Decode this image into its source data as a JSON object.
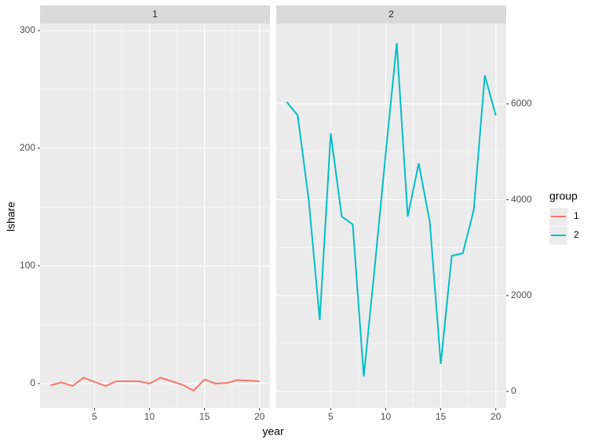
{
  "chart_data": {
    "type": "line",
    "x_label": "year",
    "y_label": "lshare",
    "legend_title": "group",
    "legend_position": "right",
    "grid": true,
    "xlim": [
      0.05,
      20.95
    ],
    "xticks": [
      5,
      10,
      15,
      20
    ],
    "panels": [
      {
        "strip": "1",
        "axis_side": "left",
        "ylim": [
          -20.7,
          306
        ],
        "yticks": [
          0,
          100,
          200,
          300
        ],
        "series": [
          {
            "name": "1",
            "color": "#F8766D",
            "x": [
              1,
              2,
              3,
              4,
              5,
              6,
              7,
              8,
              9,
              10,
              11,
              12,
              13,
              14,
              15,
              16,
              17,
              18,
              19,
              20
            ],
            "values": [
              -1.5,
              1,
              -2,
              5,
              1.5,
              -2,
              2,
              2,
              2,
              0,
              5,
              2,
              -1,
              -6,
              3.5,
              0,
              0.5,
              3,
              2.5,
              2
            ]
          }
        ]
      },
      {
        "strip": "2",
        "axis_side": "right",
        "ylim": [
          -344,
          7676
        ],
        "yticks": [
          0,
          2000,
          4000,
          6000
        ],
        "series": [
          {
            "name": "2",
            "color": "#00BFC4",
            "x": [
              1,
              2,
              3,
              4,
              5,
              6,
              7,
              8,
              9,
              10,
              11,
              12,
              13,
              14,
              15,
              16,
              17,
              18,
              19,
              20
            ],
            "values": [
              6040,
              5760,
              3990,
              1490,
              5385,
              3650,
              3485,
              310,
              2600,
              4975,
              7265,
              3650,
              4760,
              3535,
              575,
              2830,
              2880,
              3780,
              6595,
              5760
            ]
          }
        ]
      }
    ]
  }
}
